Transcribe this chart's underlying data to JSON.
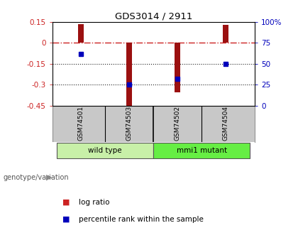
{
  "title": "GDS3014 / 2911",
  "samples": [
    "GSM74501",
    "GSM74503",
    "GSM74502",
    "GSM74504"
  ],
  "log_ratios": [
    0.135,
    -0.455,
    -0.355,
    0.13
  ],
  "percentile_ranks": [
    62,
    25,
    32,
    50
  ],
  "ylim_left": [
    -0.45,
    0.15
  ],
  "ylim_right": [
    0,
    100
  ],
  "yticks_left": [
    0.15,
    0.0,
    -0.15,
    -0.3,
    -0.45
  ],
  "yticks_right": [
    100,
    75,
    50,
    25,
    0
  ],
  "ytick_labels_left": [
    "0.15",
    "0",
    "-0.15",
    "-0.3",
    "-0.45"
  ],
  "ytick_labels_right": [
    "100%",
    "75",
    "50",
    "25",
    "0"
  ],
  "groups": [
    {
      "label": "wild type",
      "samples": [
        0,
        1
      ],
      "color": "#c8f0a8"
    },
    {
      "label": "mmi1 mutant",
      "samples": [
        2,
        3
      ],
      "color": "#66ee44"
    }
  ],
  "bar_color": "#9b1010",
  "scatter_color": "#0000bb",
  "zero_line_color": "#cc2222",
  "dotted_line_color": "#222222",
  "bg_color": "#ffffff",
  "plot_bg_color": "#ffffff",
  "sample_box_color": "#c8c8c8",
  "bar_width": 0.12,
  "legend_log_ratio_color": "#cc2222",
  "legend_percentile_color": "#0000bb"
}
